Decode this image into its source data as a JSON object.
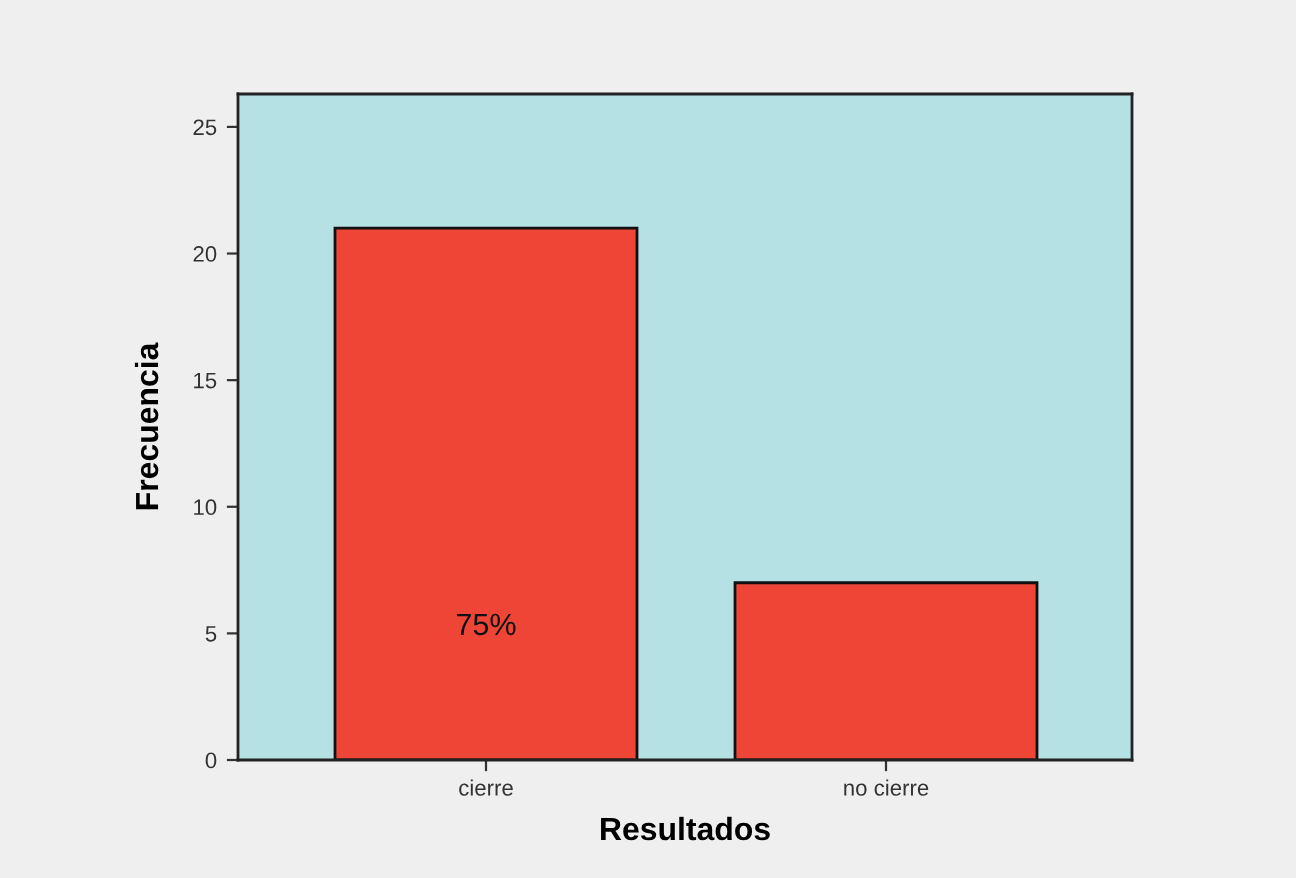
{
  "chart_data": {
    "type": "bar",
    "xlabel": "Resultados",
    "ylabel": "Frecuencia",
    "categories": [
      "cierre",
      "no cierre"
    ],
    "values": [
      21,
      7
    ],
    "color": "#ee4536",
    "annotations": [
      "75%"
    ],
    "ylim": [
      0,
      26.3
    ],
    "yticks": [
      0,
      5,
      10,
      15,
      20,
      25
    ]
  }
}
